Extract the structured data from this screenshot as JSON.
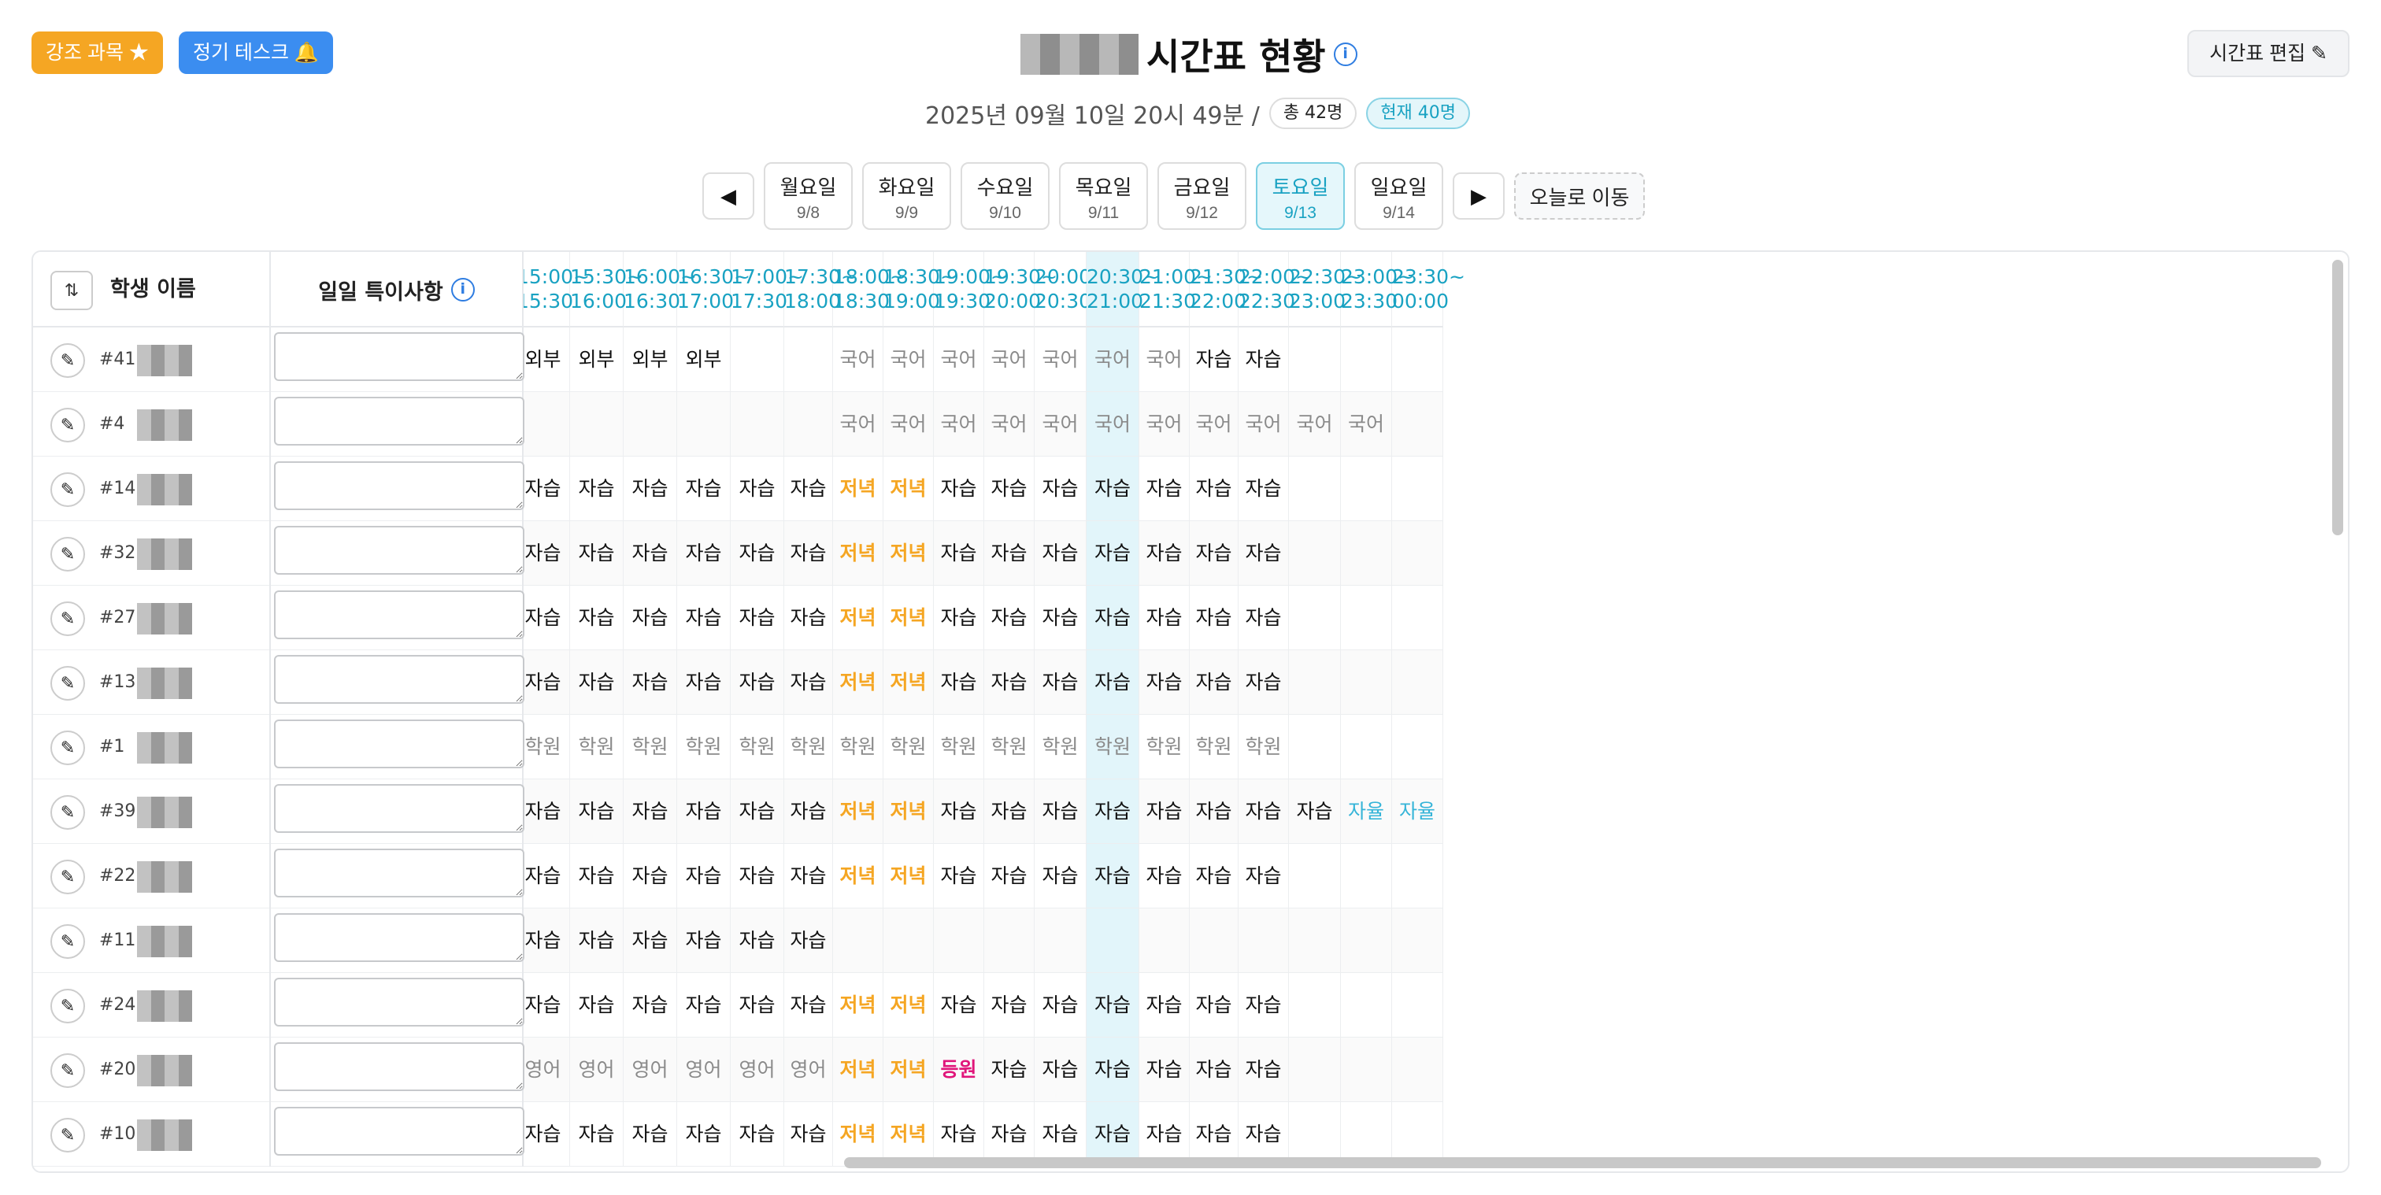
{
  "header": {
    "highlight_btn": "강조 과목 ★",
    "task_btn": "정기 테스크 🔔",
    "title": "시간표 현황",
    "edit_btn": "시간표 편집 ✎",
    "datetime": "2025년 09월 10일 20시 49분 /",
    "total": "총 42명",
    "current": "현재 40명"
  },
  "nav": {
    "prev": "◀",
    "next": "▶",
    "today": "오늘로 이동",
    "days": [
      {
        "name": "월요일",
        "date": "9/8"
      },
      {
        "name": "화요일",
        "date": "9/9"
      },
      {
        "name": "수요일",
        "date": "9/10"
      },
      {
        "name": "목요일",
        "date": "9/11"
      },
      {
        "name": "금요일",
        "date": "9/12"
      },
      {
        "name": "토요일",
        "date": "9/13"
      },
      {
        "name": "일요일",
        "date": "9/14"
      }
    ],
    "active_day_index": 5
  },
  "table": {
    "sort_icon": "⇅",
    "name_header": "학생 이름",
    "note_header": "일일 특이사항",
    "time_headers": [
      "15:00~ 15:30",
      "15:30~ 16:00",
      "16:00~ 16:30",
      "16:30~ 17:00",
      "17:00~ 17:30",
      "17:30~ 18:00",
      "18:00~ 18:30",
      "18:30~ 19:00",
      "19:00~ 19:30",
      "19:30~ 20:00",
      "20:00~ 20:30",
      "20:30~ 21:00",
      "21:00~ 21:30",
      "21:30~ 22:00",
      "22:00~ 22:30",
      "22:30~ 23:00",
      "23:00~ 23:30",
      "23:30~ 00:00"
    ],
    "highlight_col": 11,
    "rows": [
      {
        "id": "#41",
        "cells": [
          "외부상담",
          "외부상담",
          "외부상담",
          "외부상담",
          "",
          "",
          "국어",
          "국어",
          "국어",
          "국어",
          "국어",
          "국어",
          "국어",
          "자습",
          "자습",
          "",
          "",
          ""
        ]
      },
      {
        "id": "#4",
        "cells": [
          "",
          "",
          "",
          "",
          "",
          "",
          "국어",
          "국어",
          "국어",
          "국어",
          "국어",
          "국어",
          "국어",
          "국어",
          "국어",
          "국어",
          "국어",
          ""
        ]
      },
      {
        "id": "#14",
        "cells": [
          "자습",
          "자습",
          "자습",
          "자습",
          "자습",
          "자습",
          "저녁",
          "저녁",
          "자습",
          "자습",
          "자습",
          "자습",
          "자습",
          "자습",
          "자습",
          "",
          "",
          ""
        ]
      },
      {
        "id": "#32",
        "cells": [
          "자습",
          "자습",
          "자습",
          "자습",
          "자습",
          "자습",
          "저녁",
          "저녁",
          "자습",
          "자습",
          "자습",
          "자습",
          "자습",
          "자습",
          "자습",
          "",
          "",
          ""
        ]
      },
      {
        "id": "#27",
        "cells": [
          "자습",
          "자습",
          "자습",
          "자습",
          "자습",
          "자습",
          "저녁",
          "저녁",
          "자습",
          "자습",
          "자습",
          "자습",
          "자습",
          "자습",
          "자습",
          "",
          "",
          ""
        ]
      },
      {
        "id": "#13",
        "cells": [
          "자습",
          "자습",
          "자습",
          "자습",
          "자습",
          "자습",
          "저녁",
          "저녁",
          "자습",
          "자습",
          "자습",
          "자습",
          "자습",
          "자습",
          "자습",
          "",
          "",
          ""
        ]
      },
      {
        "id": "#1",
        "cells": [
          "학원",
          "학원",
          "학원",
          "학원",
          "학원",
          "학원",
          "학원",
          "학원",
          "학원",
          "학원",
          "학원",
          "학원",
          "학원",
          "학원",
          "학원",
          "",
          "",
          ""
        ]
      },
      {
        "id": "#39",
        "cells": [
          "자습",
          "자습",
          "자습",
          "자습",
          "자습",
          "자습",
          "저녁",
          "저녁",
          "자습",
          "자습",
          "자습",
          "자습",
          "자습",
          "자습",
          "자습",
          "자습",
          "자율",
          "자율"
        ]
      },
      {
        "id": "#22",
        "cells": [
          "자습",
          "자습",
          "자습",
          "자습",
          "자습",
          "자습",
          "저녁",
          "저녁",
          "자습",
          "자습",
          "자습",
          "자습",
          "자습",
          "자습",
          "자습",
          "",
          "",
          ""
        ]
      },
      {
        "id": "#11",
        "cells": [
          "자습",
          "자습",
          "자습",
          "자습",
          "자습",
          "자습",
          "",
          "",
          "",
          "",
          "",
          "",
          "",
          "",
          "",
          "",
          "",
          ""
        ]
      },
      {
        "id": "#24",
        "cells": [
          "자습",
          "자습",
          "자습",
          "자습",
          "자습",
          "자습",
          "저녁",
          "저녁",
          "자습",
          "자습",
          "자습",
          "자습",
          "자습",
          "자습",
          "자습",
          "",
          "",
          ""
        ]
      },
      {
        "id": "#20",
        "cells": [
          "영어",
          "영어",
          "영어",
          "영어",
          "영어",
          "영어",
          "저녁",
          "저녁",
          "등원",
          "자습",
          "자습",
          "자습",
          "자습",
          "자습",
          "자습",
          "",
          "",
          ""
        ]
      },
      {
        "id": "#10",
        "cells": [
          "자습",
          "자습",
          "자습",
          "자습",
          "자습",
          "자습",
          "저녁",
          "저녁",
          "자습",
          "자습",
          "자습",
          "자습",
          "자습",
          "자습",
          "자습",
          "",
          "",
          ""
        ]
      }
    ]
  }
}
